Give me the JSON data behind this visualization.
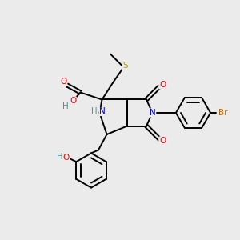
{
  "bg_color": "#ebebeb",
  "atom_colors": {
    "C": "#000000",
    "N": "#0000ff",
    "O": "#ff0000",
    "S": "#b8a000",
    "Br": "#cc6600",
    "H": "#5a8a8a"
  },
  "bond_color": "#000000",
  "bond_width": 1.4,
  "figsize": [
    3.0,
    3.0
  ],
  "dpi": 100
}
